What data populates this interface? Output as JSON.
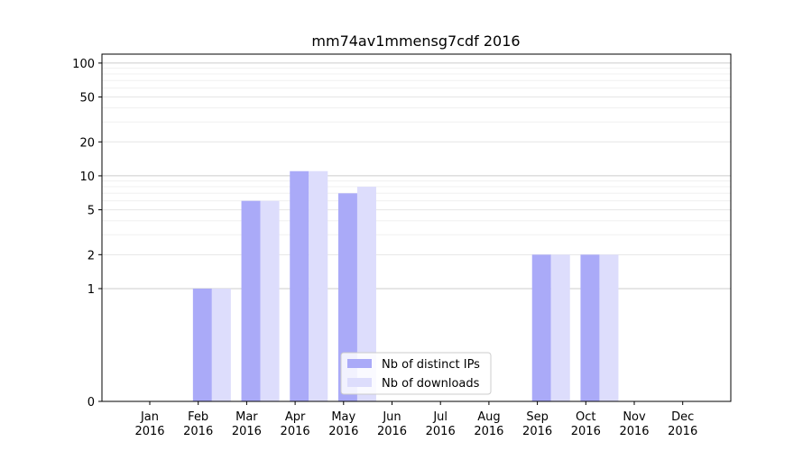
{
  "chart_data": {
    "type": "bar",
    "title": "mm74av1mmensg7cdf 2016",
    "xlabel": "",
    "ylabel": "",
    "y_scale": "symlog",
    "ylim": [
      0,
      120
    ],
    "y_major_ticks": [
      0,
      1,
      2,
      5,
      10,
      20,
      50,
      100
    ],
    "grid": "horizontal",
    "legend_placement": "bottom-center",
    "categories": [
      "Jan\n2016",
      "Feb\n2016",
      "Mar\n2016",
      "Apr\n2016",
      "May\n2016",
      "Jun\n2016",
      "Jul\n2016",
      "Aug\n2016",
      "Sep\n2016",
      "Oct\n2016",
      "Nov\n2016",
      "Dec\n2016"
    ],
    "series": [
      {
        "name": "Nb of distinct IPs",
        "color": "#aaaaf8",
        "values": [
          0,
          1,
          6,
          11,
          7,
          0,
          0,
          0,
          2,
          2,
          0,
          0
        ]
      },
      {
        "name": "Nb of downloads",
        "color": "#ddddfc",
        "values": [
          0,
          1,
          6,
          11,
          8,
          0,
          0,
          0,
          2,
          2,
          0,
          0
        ]
      }
    ]
  }
}
